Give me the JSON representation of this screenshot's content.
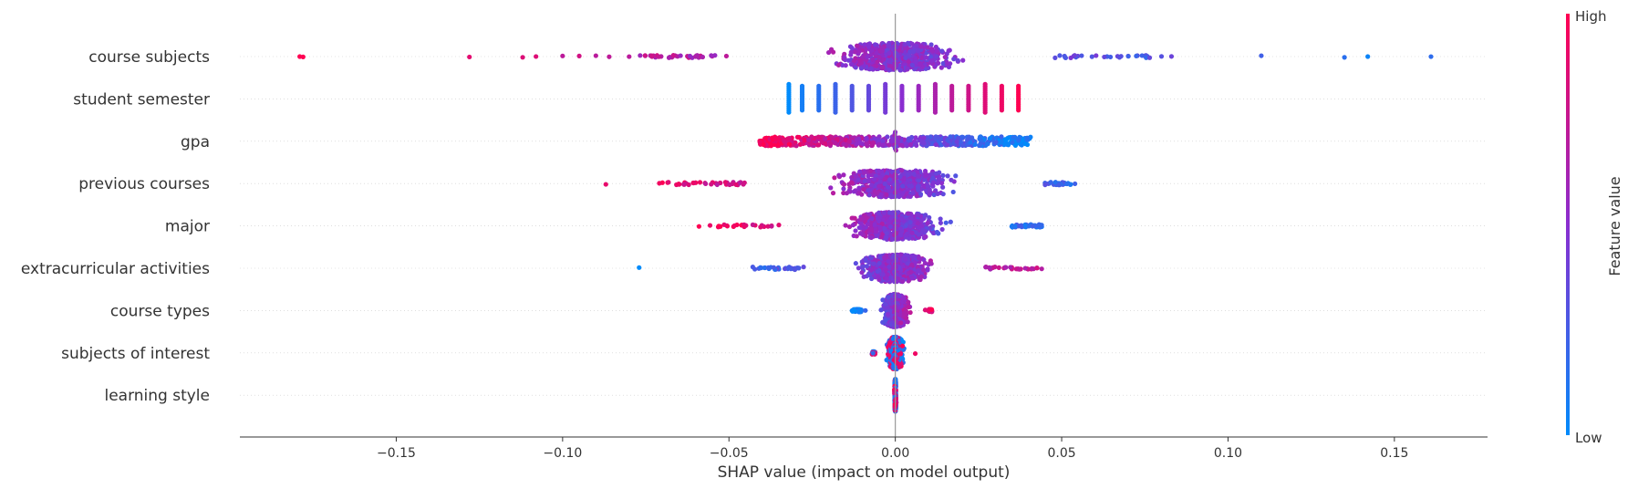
{
  "chart_data": {
    "type": "scatter",
    "subtype": "shap-beeswarm",
    "title": "",
    "xlabel": "SHAP value (impact on model output)",
    "ylabel": "",
    "xlim": [
      -0.197,
      0.178
    ],
    "xticks": [
      -0.15,
      -0.1,
      -0.05,
      0.0,
      0.05,
      0.1,
      0.15
    ],
    "xtick_labels": [
      "−0.15",
      "−0.10",
      "−0.05",
      "0.00",
      "0.05",
      "0.10",
      "0.15"
    ],
    "grid": false,
    "features": [
      {
        "name": "course subjects",
        "min": -0.179,
        "max": 0.161,
        "core": 0.048,
        "spread": 0.2,
        "direction": "negative",
        "outliers": [
          -0.179,
          -0.178,
          -0.128,
          -0.112,
          -0.108,
          -0.1,
          -0.095,
          -0.09,
          -0.086,
          -0.08,
          0.07,
          0.075,
          0.08,
          0.083,
          0.11,
          0.135,
          0.142,
          0.161
        ]
      },
      {
        "name": "student semester",
        "min": -0.032,
        "max": 0.038,
        "direction": "positive",
        "discrete": true,
        "levels": [
          -0.032,
          -0.028,
          -0.023,
          -0.018,
          -0.013,
          -0.008,
          -0.003,
          0.002,
          0.007,
          0.012,
          0.017,
          0.022,
          0.027,
          0.032,
          0.037
        ]
      },
      {
        "name": "gpa",
        "min": -0.041,
        "max": 0.039,
        "core": 0.041,
        "spread": 0.05,
        "direction": "negative",
        "uniform": true,
        "outliers": []
      },
      {
        "name": "previous courses",
        "min": -0.087,
        "max": 0.054,
        "core": 0.045,
        "spread": 0.16,
        "direction": "negative",
        "outliers": [
          -0.087,
          -0.07,
          -0.065,
          -0.06,
          0.045,
          0.048,
          0.051,
          0.054
        ]
      },
      {
        "name": "major",
        "min": -0.059,
        "max": 0.044,
        "core": 0.035,
        "spread": 0.04,
        "direction": "negative",
        "outliers": [
          -0.059,
          -0.035,
          0.035,
          0.038,
          0.042,
          0.044
        ]
      },
      {
        "name": "extracurricular activities",
        "min": -0.077,
        "max": 0.044,
        "core": 0.027,
        "spread": 0.14,
        "direction": "positive",
        "outliers": [
          -0.077,
          -0.041,
          -0.033,
          0.035,
          0.037,
          0.044
        ]
      },
      {
        "name": "course types",
        "min": -0.013,
        "max": 0.011,
        "core": 0.01,
        "spread": 0.35,
        "direction": "positive",
        "outliers": [
          -0.013,
          -0.011,
          -0.009,
          0.009,
          0.011
        ]
      },
      {
        "name": "subjects of interest",
        "min": -0.007,
        "max": 0.006,
        "core": 0.006,
        "spread": 0.35,
        "direction": "mixed",
        "outliers": [
          -0.007,
          0.006
        ]
      },
      {
        "name": "learning style",
        "min": -0.0005,
        "max": 0.0005,
        "core": 0.0005,
        "spread": 1,
        "direction": "mixed",
        "outliers": []
      }
    ],
    "colorbar": {
      "label": "Feature value",
      "high_label": "High",
      "low_label": "Low",
      "high_color": "#ff0052",
      "mid_color": "#8a2ed0",
      "low_color": "#008bfb"
    },
    "zero_line_color": "#999999"
  }
}
